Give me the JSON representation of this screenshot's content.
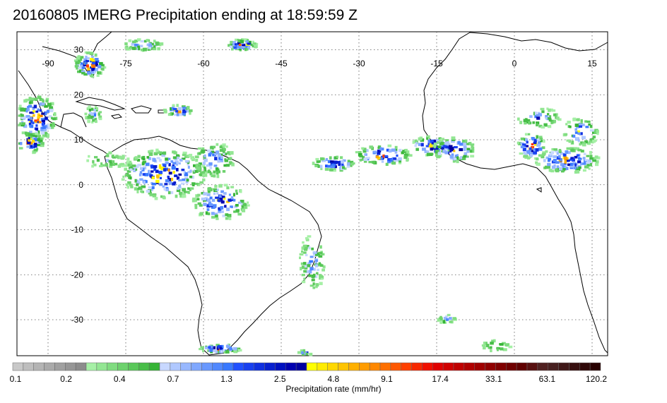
{
  "title": "20160805 IMERG Precipitation ending at 18:59:59 Z",
  "map": {
    "lon_range": [
      -96,
      18
    ],
    "lat_range": [
      -38,
      34
    ],
    "lon_labels": [
      "-90",
      "-75",
      "-60",
      "-45",
      "-30",
      "-15",
      "0",
      "15"
    ],
    "lat_labels": [
      "30",
      "20",
      "10",
      "0",
      "-10",
      "-20",
      "-30"
    ],
    "grid": "dotted"
  },
  "colorbar": {
    "label": "Precipitation rate (mm/hr)",
    "tick_labels": [
      "0.1",
      "0.2",
      "0.4",
      "0.7",
      "1.3",
      "2.5",
      "4.8",
      "9.1",
      "17.4",
      "33.1",
      "63.1",
      "120.2"
    ],
    "colors": [
      "#c8c8c8",
      "#bebebe",
      "#b4b4b4",
      "#aaaaaa",
      "#a0a0a0",
      "#969696",
      "#8c8c8c",
      "#a6f0a6",
      "#93e693",
      "#80dc80",
      "#6dd26d",
      "#5ac85a",
      "#48be48",
      "#36b436",
      "#c8d8ff",
      "#b0c8ff",
      "#98b8ff",
      "#80a8ff",
      "#6898ff",
      "#5088ff",
      "#3878ff",
      "#2050ff",
      "#1840f0",
      "#1030e0",
      "#0820d0",
      "#0010c0",
      "#0000b0",
      "#0000a0",
      "#ffff00",
      "#ffec00",
      "#ffd800",
      "#ffc400",
      "#ffb000",
      "#ff9c00",
      "#ff8800",
      "#ff7000",
      "#ff5800",
      "#ff4000",
      "#f82800",
      "#f01000",
      "#e00000",
      "#d00000",
      "#c00000",
      "#b00000",
      "#a00000",
      "#900000",
      "#800000",
      "#700000",
      "#600000",
      "#581010",
      "#502020",
      "#482020",
      "#401818",
      "#381010",
      "#300808",
      "#280000"
    ]
  }
}
